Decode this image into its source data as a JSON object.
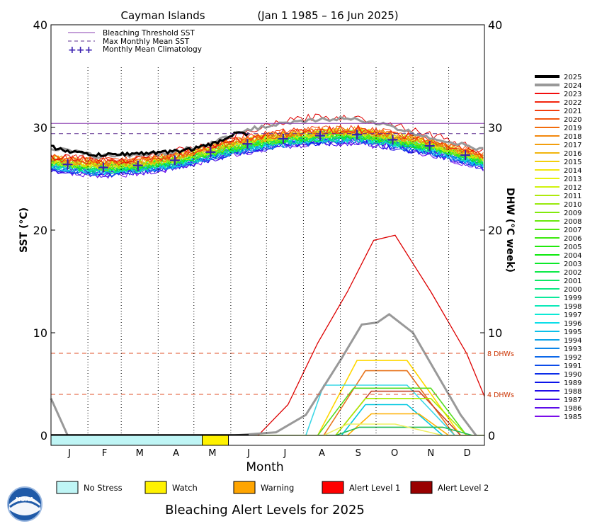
{
  "chart_data": {
    "type": "line",
    "title_left": "Cayman Islands",
    "title_right": "(Jan 1 1985 – 16 Jun 2025)",
    "xlabel": "Month",
    "ylabel_left": "SST (°C)",
    "ylabel_right": "DHW (°C week)",
    "ylim": [
      0,
      40
    ],
    "yticks": [
      0,
      10,
      20,
      30,
      40
    ],
    "months": [
      "J",
      "F",
      "M",
      "A",
      "M",
      "J",
      "J",
      "A",
      "S",
      "O",
      "N",
      "D"
    ],
    "bleaching_threshold": 30.4,
    "max_monthly_mean": 29.4,
    "climatology": [
      {
        "day": 15,
        "value": 26.4
      },
      {
        "day": 45,
        "value": 26.1
      },
      {
        "day": 74,
        "value": 26.3
      },
      {
        "day": 105,
        "value": 26.8
      },
      {
        "day": 135,
        "value": 27.6
      },
      {
        "day": 166,
        "value": 28.4
      },
      {
        "day": 196,
        "value": 28.9
      },
      {
        "day": 227,
        "value": 29.2
      },
      {
        "day": 258,
        "value": 29.3
      },
      {
        "day": 288,
        "value": 28.8
      },
      {
        "day": 319,
        "value": 28.2
      },
      {
        "day": 349,
        "value": 27.3
      }
    ],
    "dhw_reference_lines": [
      {
        "value": 8,
        "label": "8 DHWs"
      },
      {
        "value": 4,
        "label": "4 DHWs"
      }
    ],
    "legend_top": [
      {
        "label": "Bleaching Threshold SST",
        "style": "solid",
        "color": "#8a3fb0"
      },
      {
        "label": "Max Monthly Mean SST",
        "style": "dashed",
        "color": "#5b2c8f"
      },
      {
        "label": "Monthly Mean Climatology",
        "style": "crosses",
        "color": "#3a1fb0"
      }
    ],
    "years": [
      "2025",
      "2024",
      "2023",
      "2022",
      "2021",
      "2020",
      "2019",
      "2018",
      "2017",
      "2016",
      "2015",
      "2014",
      "2013",
      "2012",
      "2011",
      "2010",
      "2009",
      "2008",
      "2007",
      "2006",
      "2005",
      "2004",
      "2003",
      "2002",
      "2001",
      "2000",
      "1999",
      "1998",
      "1997",
      "1996",
      "1995",
      "1994",
      "1993",
      "1992",
      "1991",
      "1990",
      "1989",
      "1988",
      "1987",
      "1986",
      "1985"
    ],
    "year_colors": {
      "2025": "#000000",
      "2024": "#999999"
    },
    "sst_2025": [
      {
        "day": 1,
        "value": 28.1
      },
      {
        "day": 20,
        "value": 27.6
      },
      {
        "day": 40,
        "value": 27.3
      },
      {
        "day": 60,
        "value": 27.4
      },
      {
        "day": 80,
        "value": 27.5
      },
      {
        "day": 100,
        "value": 27.6
      },
      {
        "day": 120,
        "value": 27.9
      },
      {
        "day": 140,
        "value": 28.5
      },
      {
        "day": 155,
        "value": 29.4
      },
      {
        "day": 167,
        "value": 29.4
      }
    ],
    "sst_2024": [
      {
        "day": 1,
        "value": 28.0
      },
      {
        "day": 40,
        "value": 27.2
      },
      {
        "day": 100,
        "value": 27.5
      },
      {
        "day": 140,
        "value": 28.6
      },
      {
        "day": 160,
        "value": 29.7
      },
      {
        "day": 200,
        "value": 30.4
      },
      {
        "day": 240,
        "value": 30.9
      },
      {
        "day": 270,
        "value": 30.6
      },
      {
        "day": 310,
        "value": 29.3
      },
      {
        "day": 365,
        "value": 27.8
      }
    ],
    "sst_2023": [
      {
        "day": 1,
        "value": 27.2
      },
      {
        "day": 60,
        "value": 26.8
      },
      {
        "day": 140,
        "value": 28.4
      },
      {
        "day": 190,
        "value": 30.4
      },
      {
        "day": 220,
        "value": 31.0
      },
      {
        "day": 250,
        "value": 31.0
      },
      {
        "day": 290,
        "value": 30.3
      },
      {
        "day": 330,
        "value": 29.0
      },
      {
        "day": 365,
        "value": 27.6
      }
    ],
    "dhw_2023": [
      {
        "day": 175,
        "value": 0
      },
      {
        "day": 200,
        "value": 3
      },
      {
        "day": 225,
        "value": 9
      },
      {
        "day": 250,
        "value": 14
      },
      {
        "day": 272,
        "value": 19
      },
      {
        "day": 290,
        "value": 19.5
      },
      {
        "day": 320,
        "value": 14
      },
      {
        "day": 350,
        "value": 8
      },
      {
        "day": 365,
        "value": 3.8
      }
    ],
    "dhw_2024": [
      {
        "day": 1,
        "value": 3.6
      },
      {
        "day": 15,
        "value": 0
      },
      {
        "day": 155,
        "value": 0
      },
      {
        "day": 190,
        "value": 0.3
      },
      {
        "day": 215,
        "value": 2
      },
      {
        "day": 245,
        "value": 7.5
      },
      {
        "day": 262,
        "value": 10.8
      },
      {
        "day": 275,
        "value": 11
      },
      {
        "day": 285,
        "value": 11.8
      },
      {
        "day": 305,
        "value": 10
      },
      {
        "day": 325,
        "value": 6
      },
      {
        "day": 345,
        "value": 2
      },
      {
        "day": 358,
        "value": 0
      }
    ],
    "dhw_other_years": [
      {
        "color": "#ffd700",
        "peak": 7.3,
        "start": 225,
        "rise_end": 258,
        "fall_start": 300,
        "end": 345
      },
      {
        "color": "#e8731a",
        "peak": 6.3,
        "start": 230,
        "rise_end": 265,
        "fall_start": 300,
        "end": 340
      },
      {
        "color": "#3cd7e6",
        "peak": 4.9,
        "start": 215,
        "rise_end": 230,
        "fall_start": 300,
        "end": 340
      },
      {
        "color": "#55dd22",
        "peak": 4.6,
        "start": 225,
        "rise_end": 255,
        "fall_start": 320,
        "end": 350
      },
      {
        "color": "#c8432a",
        "peak": 4.3,
        "start": 240,
        "rise_end": 270,
        "fall_start": 310,
        "end": 345
      },
      {
        "color": "#aaee00",
        "peak": 3.6,
        "start": 240,
        "rise_end": 265,
        "fall_start": 320,
        "end": 350
      },
      {
        "color": "#00c8e0",
        "peak": 3.0,
        "start": 245,
        "rise_end": 265,
        "fall_start": 300,
        "end": 330
      },
      {
        "color": "#ffb000",
        "peak": 2.1,
        "start": 250,
        "rise_end": 270,
        "fall_start": 310,
        "end": 335
      },
      {
        "color": "#22bb55",
        "peak": 0.8,
        "start": 240,
        "rise_end": 260,
        "fall_start": 330,
        "end": 355
      },
      {
        "color": "#f0f060",
        "peak": 1.1,
        "start": 230,
        "rise_end": 250,
        "fall_start": 290,
        "end": 330
      }
    ],
    "alert_bar": [
      {
        "start_day": 1,
        "end_day": 128,
        "color": "#bff5f5"
      },
      {
        "start_day": 128,
        "end_day": 150,
        "color": "#fff200"
      }
    ],
    "alert_legend": [
      {
        "label": "No Stress",
        "color": "#bff5f5"
      },
      {
        "label": "Watch",
        "color": "#fff200"
      },
      {
        "label": "Warning",
        "color": "#ffa500"
      },
      {
        "label": "Alert Level 1",
        "color": "#ff0000"
      },
      {
        "label": "Alert Level 2",
        "color": "#990000"
      }
    ],
    "bottom_title": "Bleaching Alert Levels for 2025",
    "logo_text": "NOAA"
  }
}
